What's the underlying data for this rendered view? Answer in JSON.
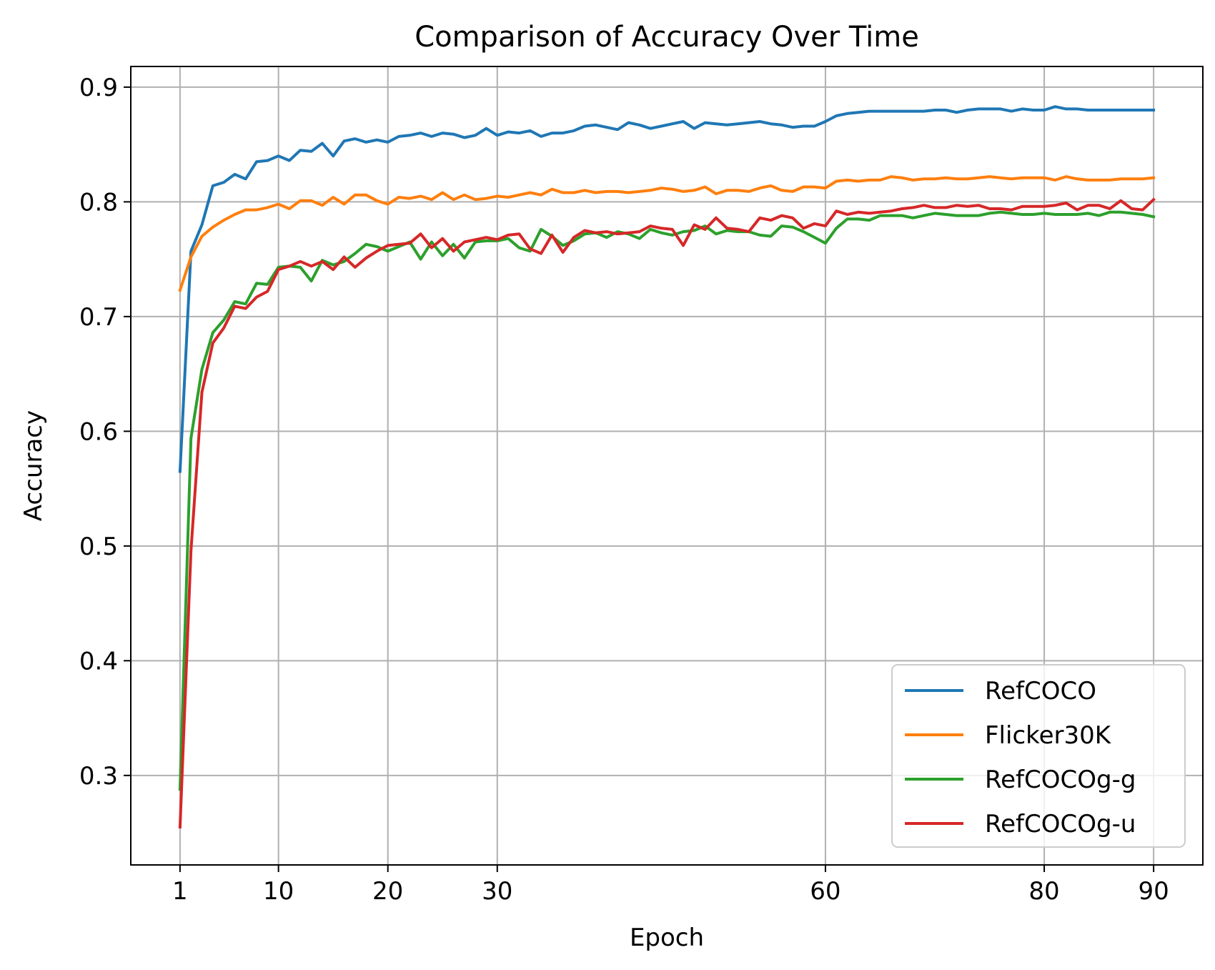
{
  "chart_data": {
    "type": "line",
    "title": "Comparison of Accuracy Over Time",
    "xlabel": "Epoch",
    "ylabel": "Accuracy",
    "xlim": [
      -3.5,
      94.5
    ],
    "ylim": [
      0.222,
      0.918
    ],
    "xticks": [
      1,
      10,
      20,
      30,
      60,
      80,
      90
    ],
    "yticks": [
      0.3,
      0.4,
      0.5,
      0.6,
      0.7,
      0.8,
      0.9
    ],
    "xtick_labels": [
      "1",
      "10",
      "20",
      "30",
      "60",
      "80",
      "90"
    ],
    "ytick_labels": [
      "0.3",
      "0.4",
      "0.5",
      "0.6",
      "0.7",
      "0.8",
      "0.9"
    ],
    "grid": true,
    "legend_position": "lower-right",
    "x": [
      1,
      2,
      3,
      4,
      5,
      6,
      7,
      8,
      9,
      10,
      11,
      12,
      13,
      14,
      15,
      16,
      17,
      18,
      19,
      20,
      21,
      22,
      23,
      24,
      25,
      26,
      27,
      28,
      29,
      30,
      31,
      32,
      33,
      34,
      35,
      36,
      37,
      38,
      39,
      40,
      41,
      42,
      43,
      44,
      45,
      46,
      47,
      48,
      49,
      50,
      51,
      52,
      53,
      54,
      55,
      56,
      57,
      58,
      59,
      60,
      61,
      62,
      63,
      64,
      65,
      66,
      67,
      68,
      69,
      70,
      71,
      72,
      73,
      74,
      75,
      76,
      77,
      78,
      79,
      80,
      81,
      82,
      83,
      84,
      85,
      86,
      87,
      88,
      89,
      90
    ],
    "series": [
      {
        "name": "RefCOCO",
        "color": "#1f77b4",
        "values": [
          0.565,
          0.757,
          0.78,
          0.814,
          0.817,
          0.824,
          0.82,
          0.835,
          0.836,
          0.84,
          0.836,
          0.845,
          0.844,
          0.851,
          0.84,
          0.853,
          0.855,
          0.852,
          0.854,
          0.852,
          0.857,
          0.858,
          0.86,
          0.857,
          0.86,
          0.859,
          0.856,
          0.858,
          0.864,
          0.858,
          0.861,
          0.86,
          0.862,
          0.857,
          0.86,
          0.86,
          0.862,
          0.866,
          0.867,
          0.865,
          0.863,
          0.869,
          0.867,
          0.864,
          0.866,
          0.868,
          0.87,
          0.864,
          0.869,
          0.868,
          0.867,
          0.868,
          0.869,
          0.87,
          0.868,
          0.867,
          0.865,
          0.866,
          0.866,
          0.87,
          0.875,
          0.877,
          0.878,
          0.879,
          0.879,
          0.879,
          0.879,
          0.879,
          0.879,
          0.88,
          0.88,
          0.878,
          0.88,
          0.881,
          0.881,
          0.881,
          0.879,
          0.881,
          0.88,
          0.88,
          0.883,
          0.881,
          0.881,
          0.88,
          0.88,
          0.88,
          0.88,
          0.88,
          0.88,
          0.88
        ]
      },
      {
        "name": "Flicker30K",
        "color": "#ff7f0e",
        "values": [
          0.723,
          0.752,
          0.77,
          0.778,
          0.784,
          0.789,
          0.793,
          0.793,
          0.795,
          0.798,
          0.794,
          0.801,
          0.801,
          0.797,
          0.804,
          0.798,
          0.806,
          0.806,
          0.801,
          0.798,
          0.804,
          0.803,
          0.805,
          0.802,
          0.808,
          0.802,
          0.806,
          0.802,
          0.803,
          0.805,
          0.804,
          0.806,
          0.808,
          0.806,
          0.811,
          0.808,
          0.808,
          0.81,
          0.808,
          0.809,
          0.809,
          0.808,
          0.809,
          0.81,
          0.812,
          0.811,
          0.809,
          0.81,
          0.813,
          0.807,
          0.81,
          0.81,
          0.809,
          0.812,
          0.814,
          0.81,
          0.809,
          0.813,
          0.813,
          0.812,
          0.818,
          0.819,
          0.818,
          0.819,
          0.819,
          0.822,
          0.821,
          0.819,
          0.82,
          0.82,
          0.821,
          0.82,
          0.82,
          0.821,
          0.822,
          0.821,
          0.82,
          0.821,
          0.821,
          0.821,
          0.819,
          0.822,
          0.82,
          0.819,
          0.819,
          0.819,
          0.82,
          0.82,
          0.82,
          0.821
        ]
      },
      {
        "name": "RefCOCOg-g",
        "color": "#2ca02c",
        "values": [
          0.288,
          0.594,
          0.654,
          0.686,
          0.697,
          0.713,
          0.711,
          0.729,
          0.728,
          0.743,
          0.744,
          0.743,
          0.731,
          0.749,
          0.745,
          0.748,
          0.755,
          0.763,
          0.761,
          0.757,
          0.761,
          0.765,
          0.75,
          0.765,
          0.753,
          0.763,
          0.751,
          0.765,
          0.766,
          0.766,
          0.768,
          0.76,
          0.757,
          0.776,
          0.77,
          0.762,
          0.766,
          0.772,
          0.773,
          0.769,
          0.774,
          0.772,
          0.768,
          0.776,
          0.773,
          0.771,
          0.774,
          0.775,
          0.779,
          0.772,
          0.775,
          0.774,
          0.774,
          0.771,
          0.77,
          0.779,
          0.778,
          0.774,
          0.769,
          0.764,
          0.777,
          0.785,
          0.785,
          0.784,
          0.788,
          0.788,
          0.788,
          0.786,
          0.788,
          0.79,
          0.789,
          0.788,
          0.788,
          0.788,
          0.79,
          0.791,
          0.79,
          0.789,
          0.789,
          0.79,
          0.789,
          0.789,
          0.789,
          0.79,
          0.788,
          0.791,
          0.791,
          0.79,
          0.789,
          0.787
        ]
      },
      {
        "name": "RefCOCOg-u",
        "color": "#d62728",
        "values": [
          0.255,
          0.496,
          0.634,
          0.677,
          0.69,
          0.709,
          0.707,
          0.717,
          0.722,
          0.741,
          0.744,
          0.748,
          0.744,
          0.748,
          0.741,
          0.752,
          0.743,
          0.751,
          0.757,
          0.762,
          0.763,
          0.764,
          0.772,
          0.76,
          0.768,
          0.757,
          0.765,
          0.767,
          0.769,
          0.767,
          0.771,
          0.772,
          0.759,
          0.755,
          0.771,
          0.756,
          0.769,
          0.775,
          0.773,
          0.774,
          0.772,
          0.773,
          0.774,
          0.779,
          0.777,
          0.776,
          0.762,
          0.78,
          0.776,
          0.786,
          0.777,
          0.776,
          0.774,
          0.786,
          0.784,
          0.788,
          0.786,
          0.777,
          0.781,
          0.779,
          0.792,
          0.789,
          0.791,
          0.79,
          0.791,
          0.792,
          0.794,
          0.795,
          0.797,
          0.795,
          0.795,
          0.797,
          0.796,
          0.797,
          0.794,
          0.794,
          0.793,
          0.796,
          0.796,
          0.796,
          0.797,
          0.799,
          0.793,
          0.797,
          0.797,
          0.794,
          0.801,
          0.794,
          0.793,
          0.802
        ]
      }
    ]
  }
}
